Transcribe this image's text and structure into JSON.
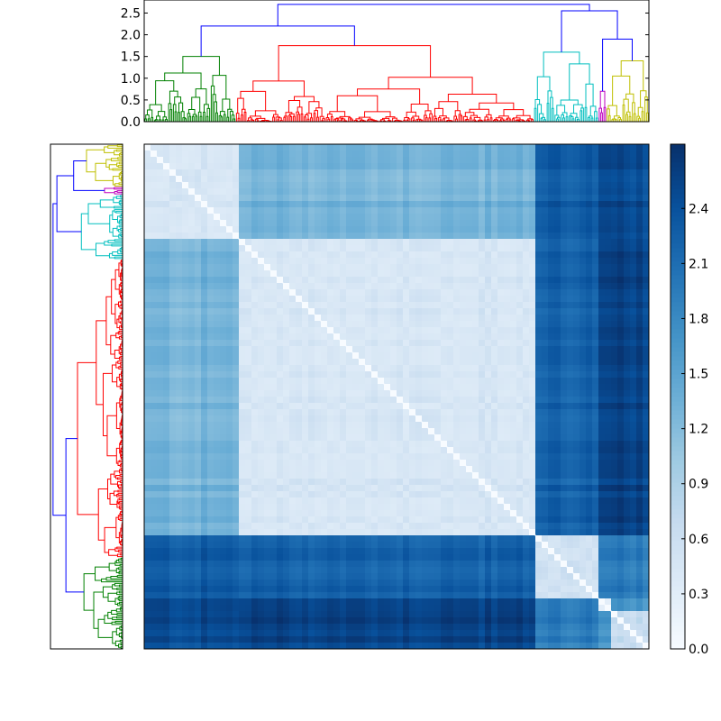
{
  "chart_data": {
    "type": "heatmap",
    "title": "",
    "description_free": true,
    "matrix": {
      "n_leaves": 320,
      "value_range": [
        0.0,
        2.7
      ],
      "colormap": "Blues",
      "colormap_stops": [
        "#f7fbff",
        "#deebf7",
        "#c6dbef",
        "#9ecae1",
        "#6baed6",
        "#4292c6",
        "#2171b5",
        "#08519c",
        "#08306b"
      ],
      "cluster_order": [
        "green",
        "red",
        "cyan",
        "magenta",
        "yellow"
      ],
      "cluster_sizes": [
        58,
        189,
        41,
        5,
        27
      ],
      "cluster_colors": {
        "green": "#008000",
        "red": "#ff0000",
        "cyan": "#00bfbf",
        "magenta": "#bf00bf",
        "yellow": "#bfbf00",
        "link": "#0000ff"
      },
      "within_cluster_distance": {
        "green": 0.35,
        "red": 0.35,
        "cyan": 0.45,
        "magenta": 0.1,
        "yellow": 0.55
      },
      "between_cluster_distance": [
        {
          "pair": [
            "green",
            "red"
          ],
          "value": 1.3
        },
        {
          "pair": [
            "green",
            "cyan"
          ],
          "value": 2.3
        },
        {
          "pair": [
            "green",
            "magenta"
          ],
          "value": 2.45
        },
        {
          "pair": [
            "green",
            "yellow"
          ],
          "value": 2.45
        },
        {
          "pair": [
            "red",
            "cyan"
          ],
          "value": 2.25
        },
        {
          "pair": [
            "red",
            "magenta"
          ],
          "value": 2.5
        },
        {
          "pair": [
            "red",
            "yellow"
          ],
          "value": 2.55
        },
        {
          "pair": [
            "cyan",
            "magenta"
          ],
          "value": 1.9
        },
        {
          "pair": [
            "cyan",
            "yellow"
          ],
          "value": 1.95
        },
        {
          "pair": [
            "magenta",
            "yellow"
          ],
          "value": 1.6
        }
      ]
    },
    "dendrogram_top": {
      "ylim": [
        0.0,
        2.8
      ],
      "yticks": [
        "0.0",
        "0.5",
        "1.0",
        "1.5",
        "2.0",
        "2.5"
      ],
      "ytick_values": [
        0.0,
        0.5,
        1.0,
        1.5,
        2.0,
        2.5
      ],
      "root_height": 2.7,
      "merges": [
        {
          "name": "green-red",
          "height": 2.2,
          "color": "link"
        },
        {
          "name": "cyan-magenta-yellow",
          "height": 2.55,
          "color": "link"
        },
        {
          "name": "magenta-yellow",
          "height": 1.9,
          "color": "link"
        },
        {
          "name": "green-top",
          "height": 1.5,
          "color": "green"
        },
        {
          "name": "red-top",
          "height": 1.75,
          "color": "red"
        },
        {
          "name": "cyan-top",
          "height": 1.6,
          "color": "cyan"
        },
        {
          "name": "yellow-top",
          "height": 1.4,
          "color": "yellow"
        },
        {
          "name": "magenta-top",
          "height": 0.7,
          "color": "magenta"
        }
      ]
    },
    "dendrogram_left": {
      "orientation": "left",
      "note": "mirror of top dendrogram, order reversed (yellow at top, green at bottom)"
    },
    "colorbar": {
      "ticks": [
        "0.0",
        "0.3",
        "0.6",
        "0.9",
        "1.2",
        "1.5",
        "1.8",
        "2.1",
        "2.4"
      ],
      "tick_values": [
        0.0,
        0.3,
        0.6,
        0.9,
        1.2,
        1.5,
        1.8,
        2.1,
        2.4
      ],
      "vmin": 0.0,
      "vmax": 2.75
    }
  }
}
